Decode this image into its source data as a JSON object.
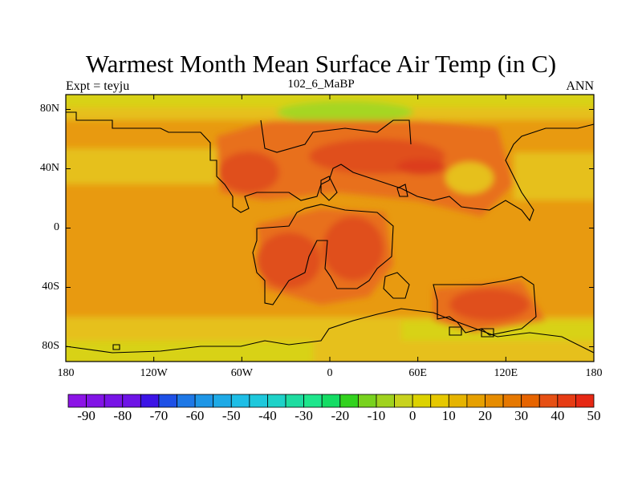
{
  "title": "Warmest Month Mean Surface Air Temp (in C)",
  "subtitle_left": "Expt = teyju",
  "subtitle_center": "102_6_MaBP",
  "subtitle_right": "ANN",
  "map": {
    "lon_range": [
      -180,
      180
    ],
    "lat_range": [
      -90,
      90
    ],
    "lat_labels": [
      "80N",
      "40N",
      "0",
      "40S",
      "80S"
    ],
    "lat_values": [
      80,
      40,
      0,
      -40,
      -80
    ],
    "lon_labels": [
      "180",
      "120W",
      "60W",
      "0",
      "60E",
      "120E",
      "180"
    ],
    "lon_values": [
      -180,
      -120,
      -60,
      0,
      60,
      120,
      180
    ]
  },
  "colorbar": {
    "labels": [
      "-90",
      "-80",
      "-70",
      "-60",
      "-50",
      "-40",
      "-30",
      "-20",
      "-10",
      "0",
      "10",
      "20",
      "30",
      "40",
      "50"
    ],
    "colors": [
      "#8c14e6",
      "#8214e6",
      "#7814e6",
      "#6e14e6",
      "#3c14e6",
      "#1e50e6",
      "#1e78e6",
      "#1e96e6",
      "#1eaae6",
      "#1ebee6",
      "#1ec8dc",
      "#1ed2c8",
      "#1edca0",
      "#1ee68c",
      "#14dc64",
      "#32d21e",
      "#78d21e",
      "#a0d21e",
      "#c8d21e",
      "#dcd200",
      "#e6c800",
      "#e6b400",
      "#e6a000",
      "#e68c00",
      "#e67800",
      "#e66400",
      "#e65014",
      "#e63c14",
      "#e62814"
    ]
  },
  "colors": {
    "background": "#e89a10",
    "warm": "#e8701e",
    "hot": "#e0501e",
    "hottest": "#dc3c1e",
    "cool": "#e6c01a",
    "coolest": "#d8d218",
    "arctic_green": "#a6d624"
  }
}
